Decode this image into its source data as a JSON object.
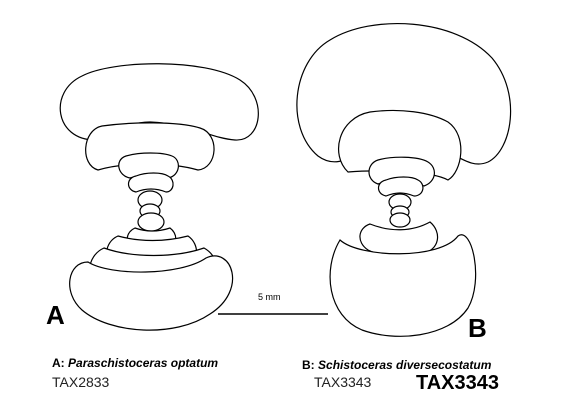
{
  "figure": {
    "panels": [
      {
        "letter": "A",
        "species_prefix": "A:",
        "species": "Paraschistoceras optatum",
        "specimen_id": "TAX2833"
      },
      {
        "letter": "B",
        "species_prefix": "B:",
        "species": "Schistoceras diversecostatum",
        "specimen_id": "TAX3343",
        "specimen_id_bold": "TAX3343"
      }
    ],
    "scale_bar": {
      "label": "5 mm"
    }
  }
}
